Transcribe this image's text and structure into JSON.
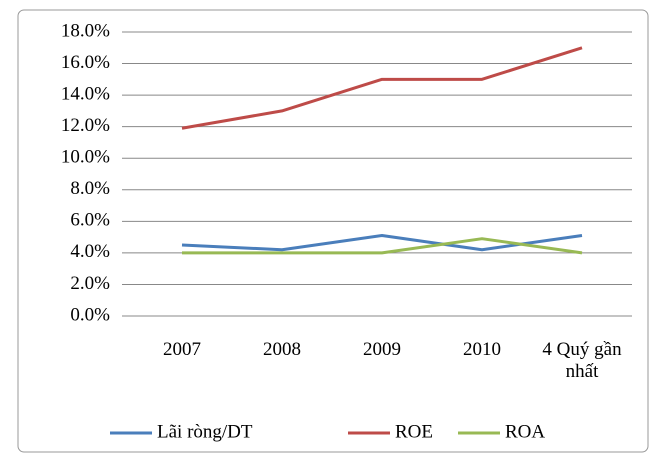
{
  "chart_data": {
    "type": "line",
    "categories": [
      "2007",
      "2008",
      "2009",
      "2010",
      "4 Quý gần nhất"
    ],
    "series": [
      {
        "name": "Lãi ròng/DT",
        "color": "#4a7ebb",
        "values": [
          4.5,
          4.2,
          5.1,
          4.2,
          5.1
        ]
      },
      {
        "name": "ROE",
        "color": "#be4b48",
        "values": [
          11.9,
          13.0,
          15.0,
          15.0,
          17.0
        ]
      },
      {
        "name": "ROA",
        "color": "#98b954",
        "values": [
          4.0,
          4.0,
          4.0,
          4.9,
          4.0
        ]
      }
    ],
    "ylim": [
      0,
      18
    ],
    "yticks": [
      {
        "value": 0,
        "label": "0.0%"
      },
      {
        "value": 2,
        "label": "2.0%"
      },
      {
        "value": 4,
        "label": "4.0%"
      },
      {
        "value": 6,
        "label": "6.0%"
      },
      {
        "value": 8,
        "label": "8.0%"
      },
      {
        "value": 10,
        "label": "10.0%"
      },
      {
        "value": 12,
        "label": "12.0%"
      },
      {
        "value": 14,
        "label": "14.0%"
      },
      {
        "value": 16,
        "label": "16.0%"
      },
      {
        "value": 18,
        "label": "18.0%"
      }
    ],
    "grid": true,
    "legend": "bottom"
  }
}
